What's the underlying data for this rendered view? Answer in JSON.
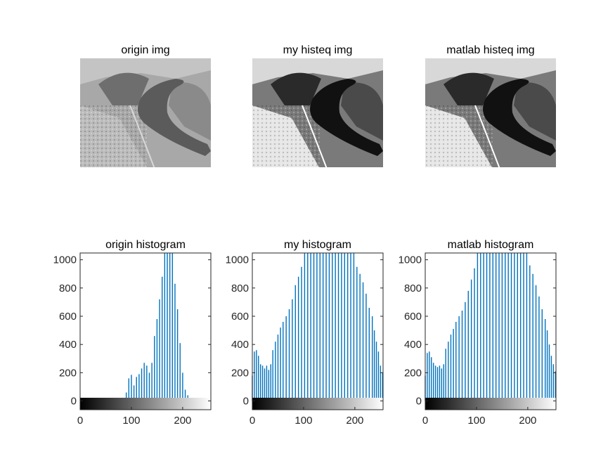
{
  "figure": {
    "image_titles": [
      "origin img",
      "my histeq img",
      "matlab histeq img"
    ],
    "image_styles": [
      "origin",
      "eq",
      "eq"
    ]
  },
  "chart_data": [
    {
      "type": "bar",
      "title": "origin histogram",
      "xlim": [
        0,
        255
      ],
      "ylim": [
        -62,
        1048
      ],
      "x_ticks": [
        0,
        100,
        200
      ],
      "y_ticks": [
        0,
        200,
        400,
        600,
        800,
        1000
      ],
      "colorbar": "gray 0-255",
      "color": "#0072BD",
      "x": [
        85,
        90,
        95,
        100,
        105,
        110,
        115,
        120,
        125,
        130,
        135,
        140,
        145,
        150,
        155,
        160,
        165,
        170,
        175,
        180,
        185,
        190,
        195,
        200,
        205,
        210,
        215,
        220,
        225,
        230,
        240,
        250
      ],
      "values": [
        15,
        60,
        160,
        185,
        110,
        170,
        190,
        230,
        270,
        250,
        200,
        270,
        460,
        580,
        720,
        880,
        1050,
        1050,
        1050,
        1050,
        830,
        650,
        410,
        200,
        80,
        40,
        20,
        15,
        10,
        8,
        5,
        3
      ]
    },
    {
      "type": "bar",
      "title": "my histogram",
      "xlim": [
        0,
        255
      ],
      "ylim": [
        -62,
        1048
      ],
      "x_ticks": [
        0,
        100,
        200
      ],
      "y_ticks": [
        0,
        200,
        400,
        600,
        800,
        1000
      ],
      "colorbar": "gray 0-255",
      "color": "#0072BD",
      "x": [
        0,
        4,
        8,
        12,
        16,
        20,
        24,
        28,
        32,
        36,
        40,
        45,
        50,
        55,
        60,
        66,
        72,
        78,
        84,
        90,
        96,
        102,
        108,
        114,
        120,
        126,
        132,
        138,
        144,
        150,
        156,
        162,
        168,
        174,
        180,
        186,
        192,
        198,
        204,
        210,
        216,
        222,
        228,
        234,
        238,
        242,
        246,
        250,
        254
      ],
      "values": [
        180,
        350,
        360,
        320,
        260,
        250,
        230,
        250,
        220,
        260,
        360,
        420,
        470,
        520,
        560,
        600,
        650,
        720,
        820,
        880,
        950,
        1050,
        1050,
        1050,
        1050,
        1050,
        1050,
        1050,
        1050,
        1050,
        1050,
        1050,
        1050,
        1050,
        1050,
        1050,
        1050,
        1050,
        950,
        900,
        840,
        760,
        660,
        600,
        500,
        420,
        350,
        250,
        200
      ]
    },
    {
      "type": "bar",
      "title": "matlab histogram",
      "xlim": [
        0,
        255
      ],
      "ylim": [
        -62,
        1048
      ],
      "x_ticks": [
        0,
        100,
        200
      ],
      "y_ticks": [
        0,
        200,
        400,
        600,
        800,
        1000
      ],
      "colorbar": "gray 0-255",
      "color": "#0072BD",
      "x": [
        0,
        4,
        8,
        12,
        16,
        20,
        24,
        28,
        32,
        36,
        40,
        45,
        50,
        55,
        60,
        66,
        72,
        78,
        84,
        90,
        96,
        102,
        108,
        114,
        120,
        126,
        132,
        138,
        144,
        150,
        156,
        162,
        168,
        174,
        180,
        186,
        192,
        198,
        204,
        210,
        216,
        222,
        228,
        234,
        238,
        242,
        246,
        250,
        254
      ],
      "values": [
        180,
        340,
        350,
        310,
        270,
        250,
        240,
        250,
        230,
        260,
        370,
        420,
        470,
        510,
        560,
        600,
        640,
        700,
        780,
        860,
        940,
        1050,
        1050,
        1050,
        1050,
        1050,
        1050,
        1050,
        1050,
        1050,
        1050,
        1050,
        1050,
        1050,
        1050,
        1050,
        1050,
        1050,
        960,
        900,
        820,
        740,
        650,
        580,
        500,
        400,
        320,
        260,
        210
      ]
    }
  ]
}
